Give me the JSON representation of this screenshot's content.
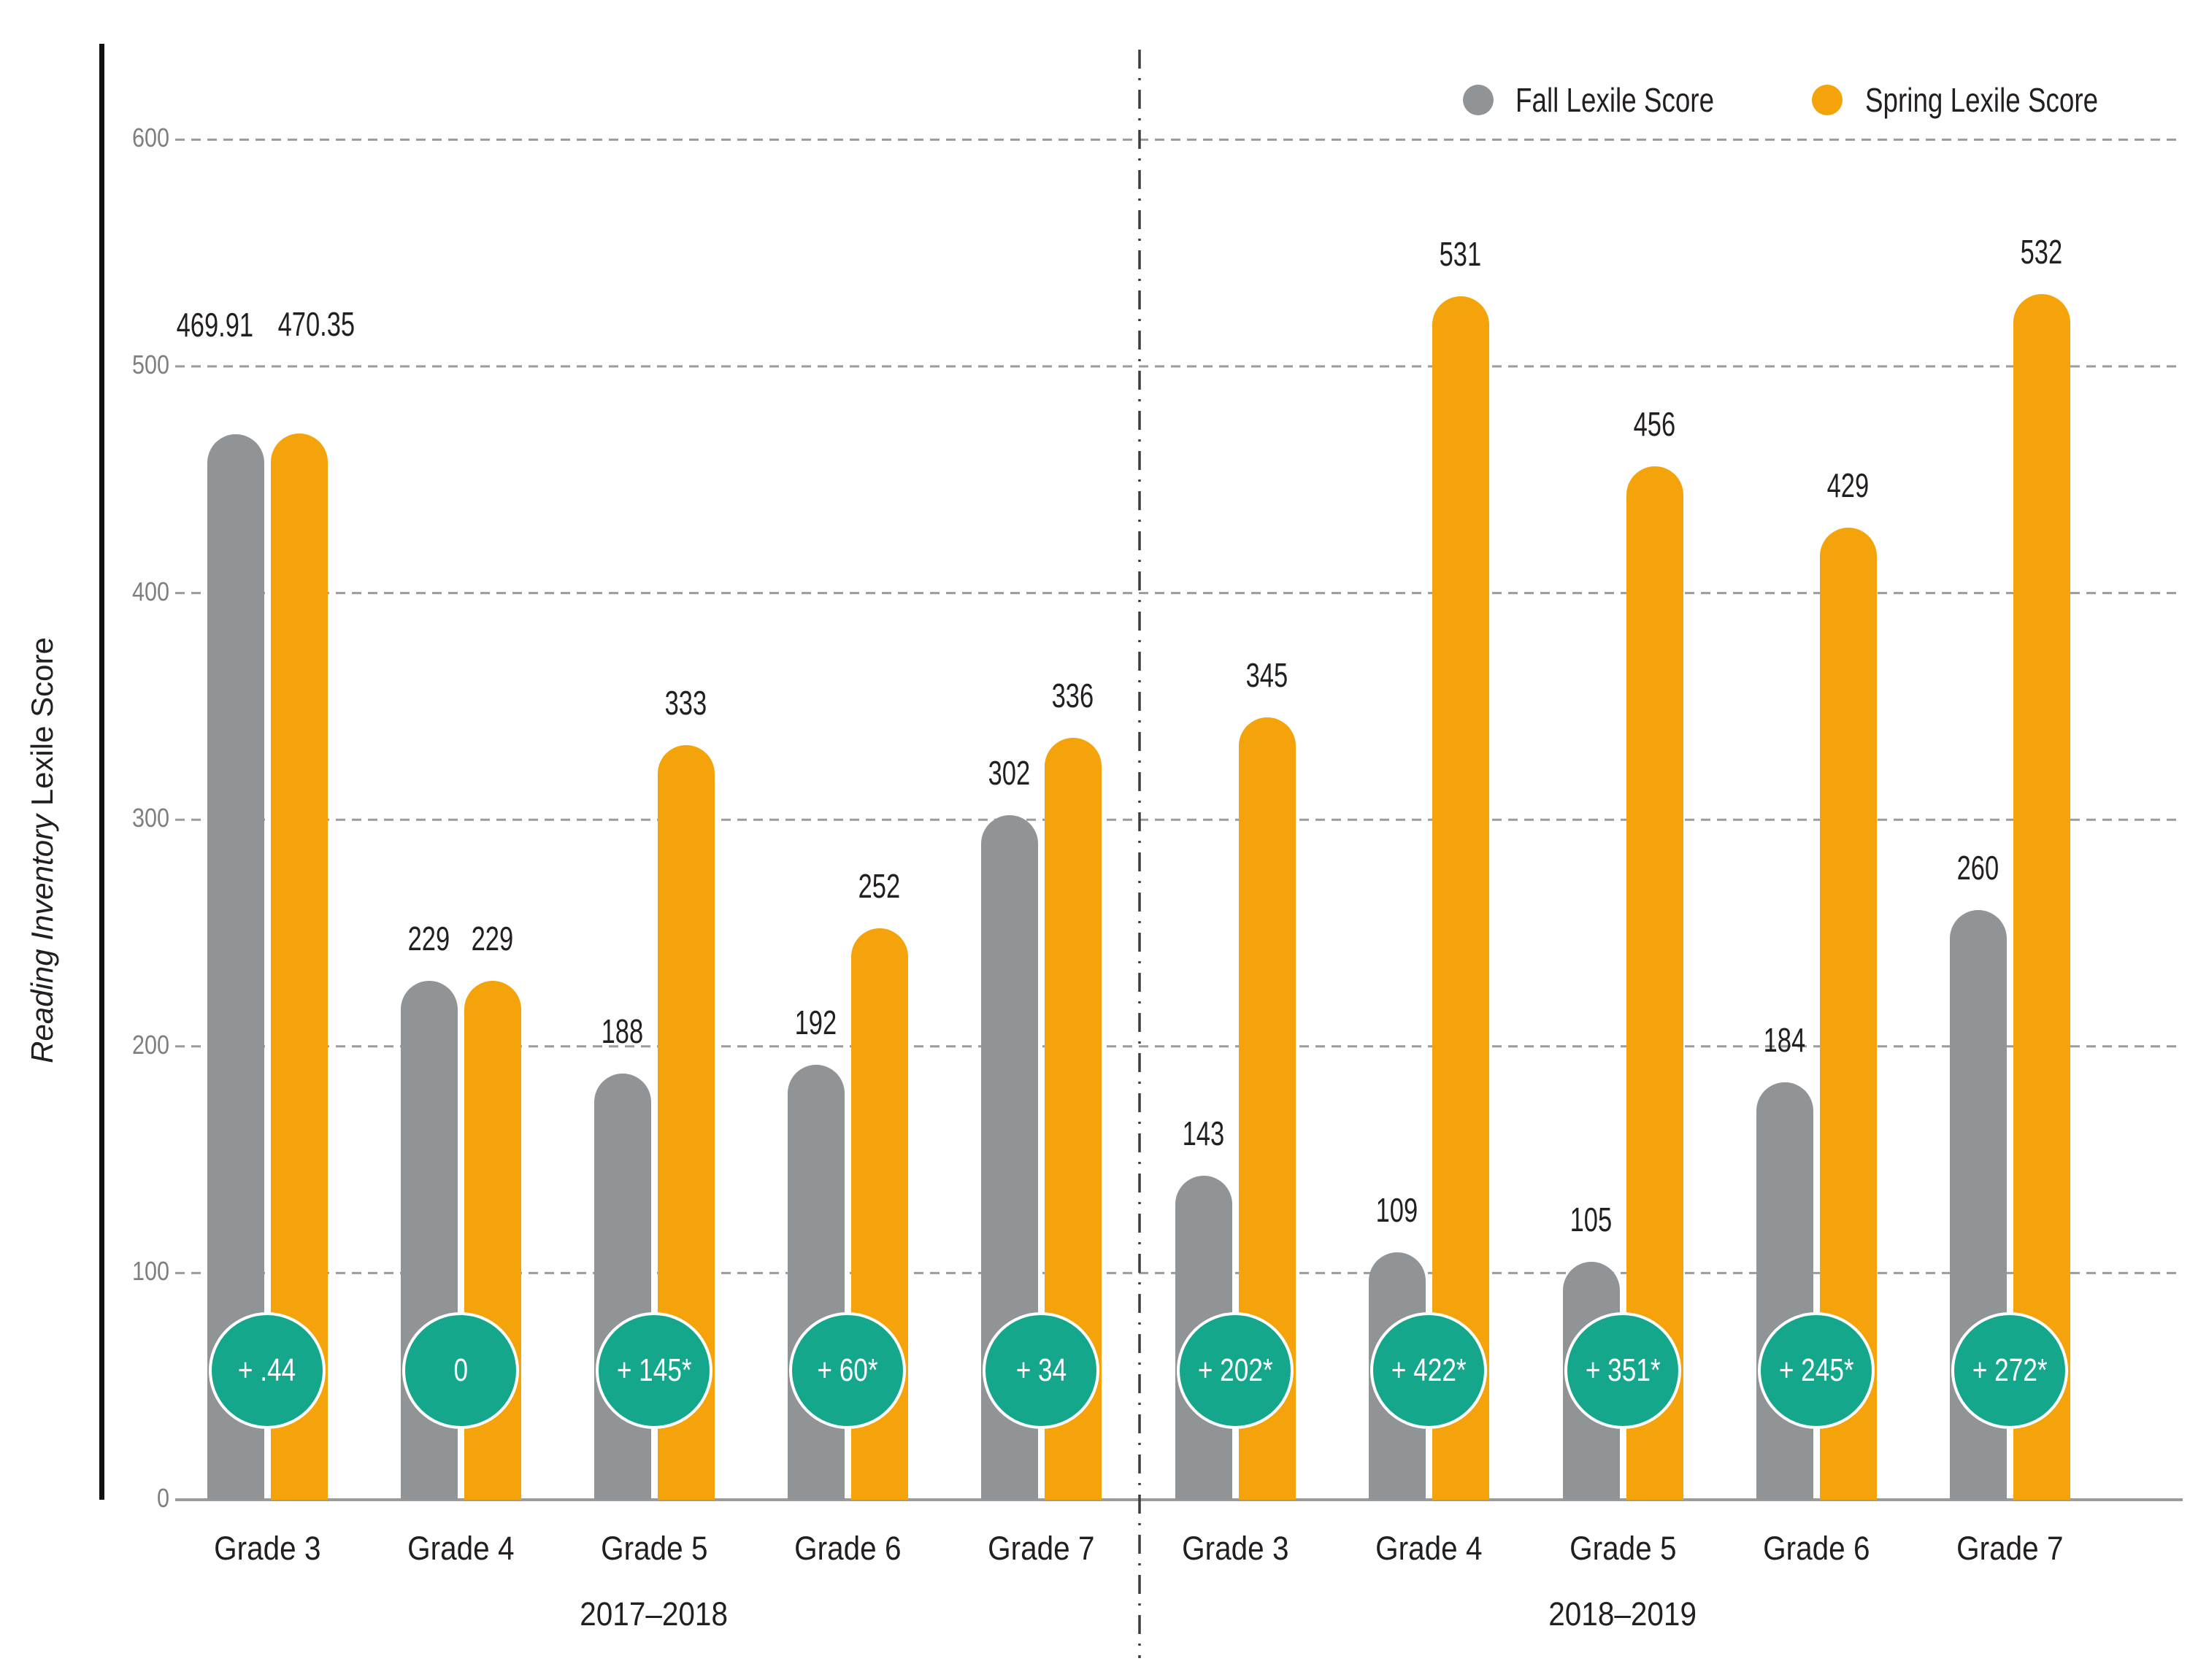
{
  "page": {
    "background": "#ffffff"
  },
  "y_axis": {
    "title_italic": "Reading Inventory",
    "title_regular": " Lexile Score",
    "ticks": [
      600,
      500,
      400,
      300,
      200,
      100,
      0
    ]
  },
  "legend": {
    "items": [
      {
        "label": "Fall Lexile Score",
        "color": "#919496"
      },
      {
        "label": "Spring Lexile Score",
        "color": "#F4A30B"
      }
    ]
  },
  "colors": {
    "fall_bar": "#919496",
    "spring_bar": "#F4A30B",
    "gain_circle": "#14A78C",
    "gain_text": "#ffffff",
    "tick_text": "#7d7f80",
    "gridline": "#9b9b9b",
    "baseline": "#9b9b9b",
    "separator": "#3c3c3c",
    "label_text": "#231f20"
  },
  "chart_data": {
    "type": "bar",
    "title": "",
    "ylabel": "Reading Inventory Lexile Score",
    "xlabel": "",
    "ylim": [
      0,
      600
    ],
    "ytick_interval": 100,
    "grid": "horizontal dashed gridlines every 100",
    "legend_position": "top-right",
    "series_names": [
      "Fall Lexile Score",
      "Spring Lexile Score"
    ],
    "groups": [
      {
        "year": "2017–2018",
        "categories": [
          "Grade 3",
          "Grade 4",
          "Grade 5",
          "Grade 6",
          "Grade 7"
        ],
        "fall_values": [
          469.91,
          229,
          188,
          192,
          302
        ],
        "fall_labels": [
          "469.91",
          "229",
          "188",
          "192",
          "302"
        ],
        "spring_values": [
          470.35,
          229,
          333,
          252,
          336
        ],
        "spring_labels": [
          "470.35",
          "229",
          "333",
          "252",
          "336"
        ],
        "gains": [
          "+ .44",
          "0",
          "+ 145*",
          "+ 60*",
          "+ 34"
        ]
      },
      {
        "year": "2018–2019",
        "categories": [
          "Grade 3",
          "Grade 4",
          "Grade 5",
          "Grade 6",
          "Grade 7"
        ],
        "fall_values": [
          143,
          109,
          105,
          184,
          260
        ],
        "fall_labels": [
          "143",
          "109",
          "105",
          "184",
          "260"
        ],
        "spring_values": [
          345,
          531,
          456,
          429,
          532
        ],
        "spring_labels": [
          "345",
          "531",
          "456",
          "429",
          "532"
        ],
        "gains": [
          "+ 202*",
          "+ 422*",
          "+ 351*",
          "+ 245*",
          "+ 272*"
        ]
      }
    ]
  }
}
